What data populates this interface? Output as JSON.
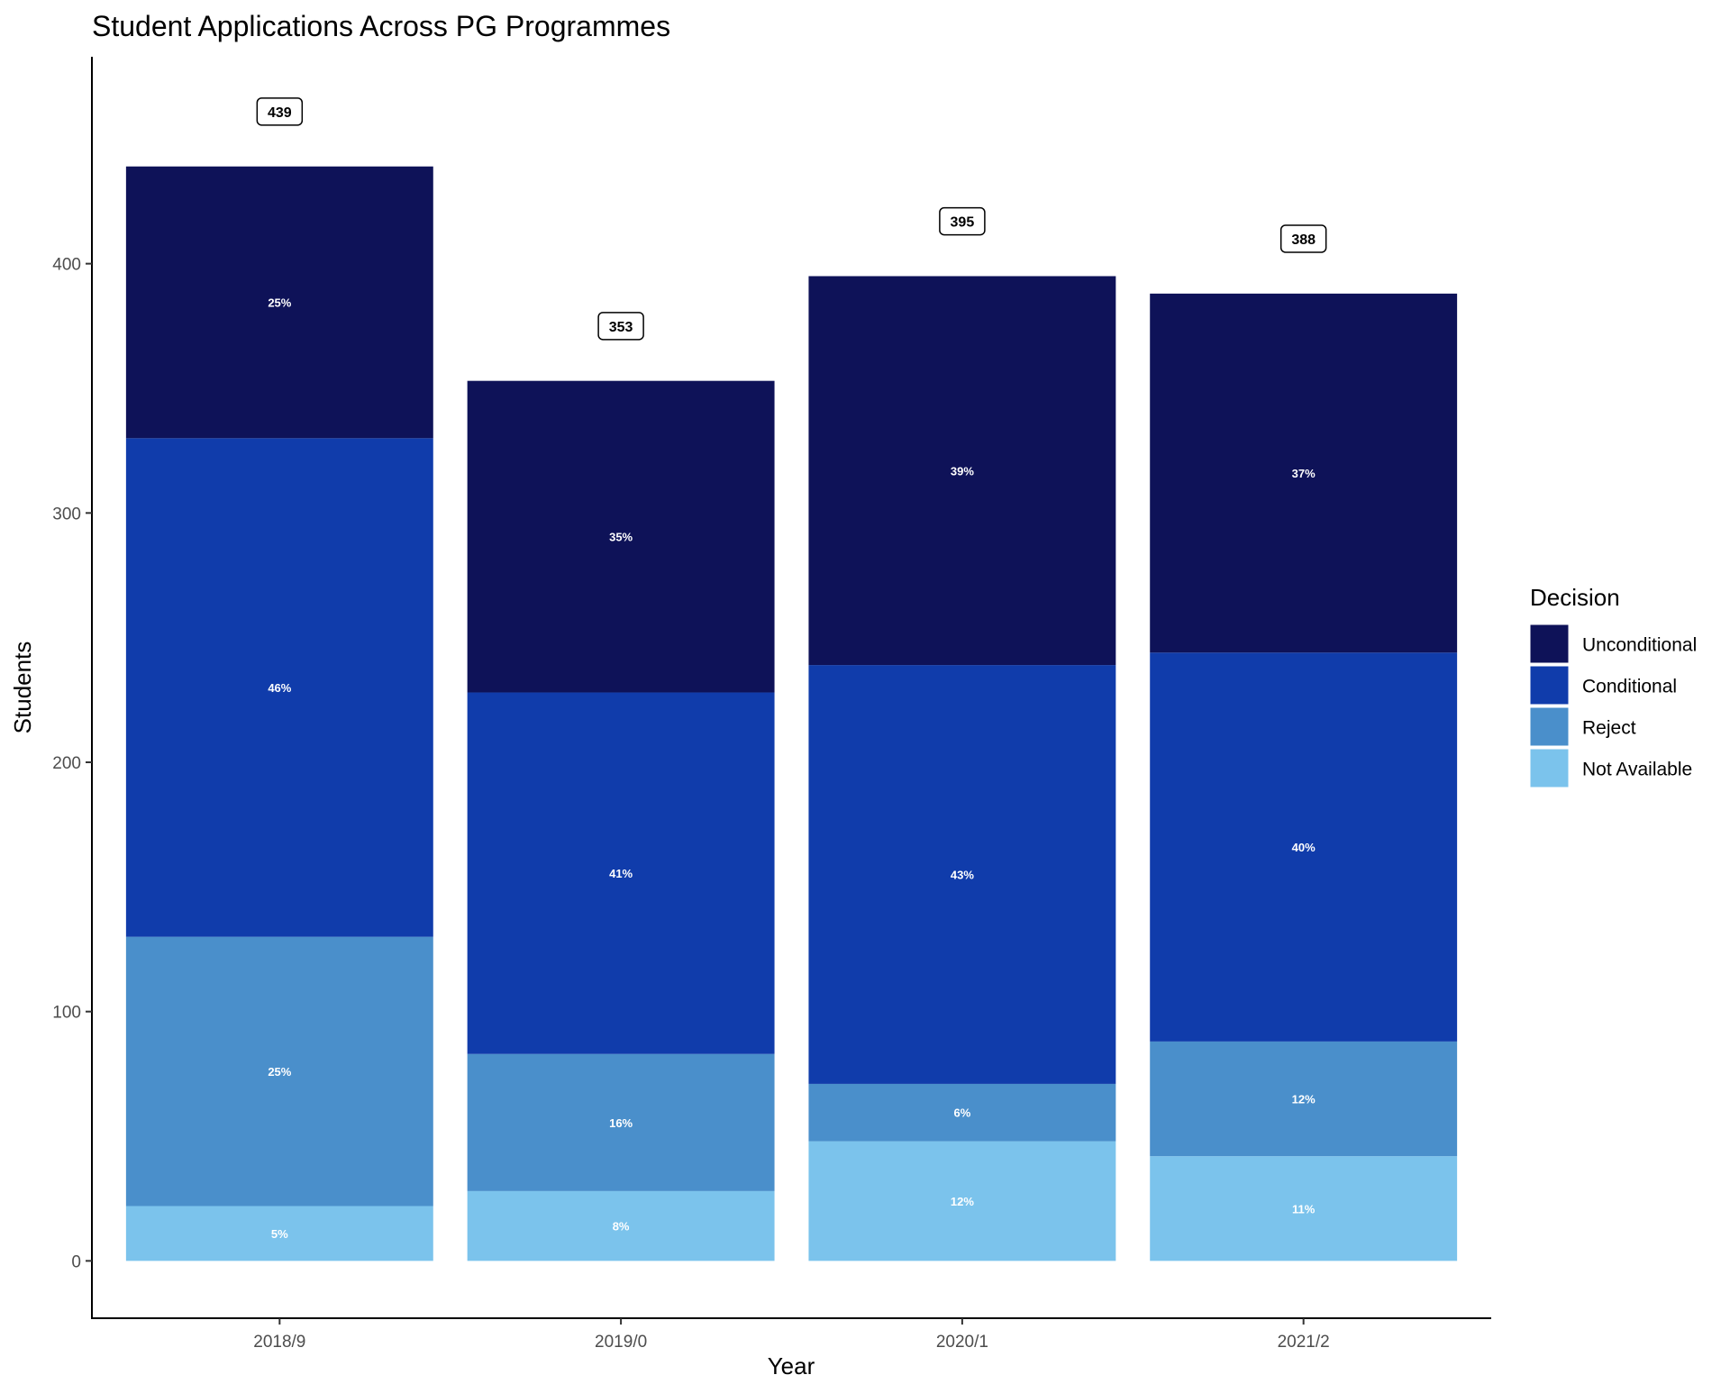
{
  "chart_data": {
    "type": "bar",
    "stacked": true,
    "title": "Student Applications Across PG Programmes",
    "xlabel": "Year",
    "ylabel": "Students",
    "ylim": [
      -23,
      483
    ],
    "yticks": [
      0,
      100,
      200,
      300,
      400
    ],
    "categories": [
      "2018/9",
      "2019/0",
      "2020/1",
      "2021/2"
    ],
    "totals": [
      439,
      353,
      395,
      388
    ],
    "series": [
      {
        "name": "Not Available",
        "color": "#7bc3ec",
        "values": [
          22,
          28,
          48,
          42
        ],
        "labels": [
          "5%",
          "8%",
          "12%",
          "11%"
        ]
      },
      {
        "name": "Reject",
        "color": "#4a8fcb",
        "values": [
          108,
          55,
          23,
          46
        ],
        "labels": [
          "25%",
          "16%",
          "6%",
          "12%"
        ]
      },
      {
        "name": "Conditional",
        "color": "#103cab",
        "values": [
          200,
          145,
          168,
          156
        ],
        "labels": [
          "46%",
          "41%",
          "43%",
          "40%"
        ]
      },
      {
        "name": "Unconditional",
        "color": "#0e1258",
        "values": [
          109,
          125,
          156,
          144
        ],
        "labels": [
          "25%",
          "35%",
          "39%",
          "37%"
        ]
      }
    ],
    "legend": {
      "title": "Decision",
      "position": "right",
      "order": [
        "Unconditional",
        "Conditional",
        "Reject",
        "Not Available"
      ]
    },
    "grid": false
  }
}
